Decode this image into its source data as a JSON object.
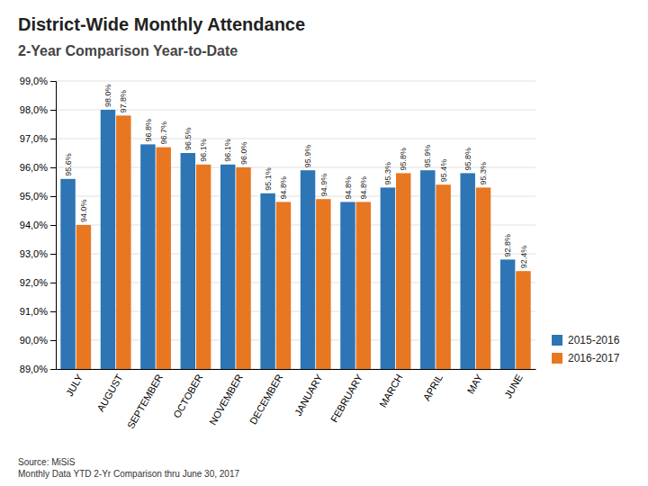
{
  "chart_data": {
    "type": "bar",
    "title": "District-Wide Monthly Attendance",
    "subtitle": "2-Year Comparison Year-to-Date",
    "categories": [
      "JULY",
      "AUGUST",
      "SEPTEMBER",
      "OCTOBER",
      "NOVEMBER",
      "DECEMBER",
      "JANUARY",
      "FEBRUARY",
      "MARCH",
      "APRIL",
      "MAY",
      "JUNE"
    ],
    "series": [
      {
        "name": "2015-2016",
        "color": "#2E75B6",
        "values": [
          95.6,
          98.0,
          96.8,
          96.5,
          96.1,
          95.1,
          95.9,
          94.8,
          95.3,
          95.9,
          95.8,
          92.8
        ],
        "value_labels": [
          "95.6%",
          "98.0%",
          "96.8%",
          "96.5%",
          "96.1%",
          "95.1%",
          "95.9%",
          "94.8%",
          "95.3%",
          "95.9%",
          "95.8%",
          "92.8%"
        ]
      },
      {
        "name": "2016-2017",
        "color": "#E87722",
        "values": [
          94.0,
          97.8,
          96.7,
          96.1,
          96.0,
          94.8,
          94.9,
          94.8,
          95.8,
          95.4,
          95.3,
          92.4
        ],
        "value_labels": [
          "94.0%",
          "97.8%",
          "96.7%",
          "96.1%",
          "96.0%",
          "94.8%",
          "94.9%",
          "94.8%",
          "95.8%",
          "95.4%",
          "95.3%",
          "92.4%"
        ]
      }
    ],
    "ylim": [
      89.0,
      99.0
    ],
    "yticks": [
      {
        "value": 89.0,
        "label": "89,0%"
      },
      {
        "value": 90.0,
        "label": "90,0%"
      },
      {
        "value": 91.0,
        "label": "91,0%"
      },
      {
        "value": 92.0,
        "label": "92,0%"
      },
      {
        "value": 93.0,
        "label": "93,0%"
      },
      {
        "value": 94.0,
        "label": "94,0%"
      },
      {
        "value": 95.0,
        "label": "95,0%"
      },
      {
        "value": 96.0,
        "label": "96,0%"
      },
      {
        "value": 97.0,
        "label": "97,0%"
      },
      {
        "value": 98.0,
        "label": "98,0%"
      },
      {
        "value": 99.0,
        "label": "99,0%"
      }
    ],
    "grid": true,
    "legend": "lower right",
    "data_labels": true,
    "annotations": [
      "Source: MiSiS",
      "Monthly Data YTD 2-Yr Comparison thru June 30, 2017"
    ]
  }
}
